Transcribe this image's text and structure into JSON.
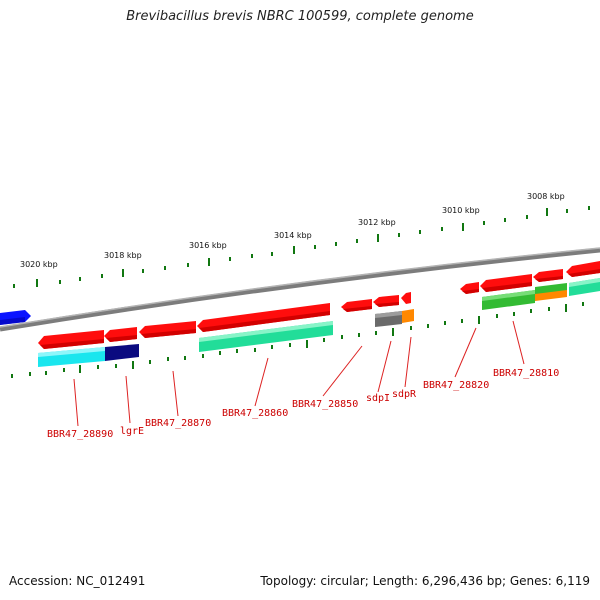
{
  "title": "Brevibacillus brevis NBRC 100599, complete genome",
  "footer": {
    "accession": "Accession: NC_012491",
    "topology": "Topology: circular; Length: 6,296,436 bp; Genes: 6,119"
  },
  "scale_labels": [
    "3020 kbp",
    "3018 kbp",
    "3016 kbp",
    "3014 kbp",
    "3012 kbp",
    "3010 kbp",
    "3008 kbp"
  ],
  "gene_labels": [
    "BBR47_28890",
    "lgrE",
    "BBR47_28870",
    "BBR47_28860",
    "BBR47_28850",
    "sdpI",
    "sdpR",
    "BBR47_28820",
    "BBR47_28810"
  ],
  "colors": {
    "cds": "#ff0000",
    "backbone": "#808080",
    "scale_ticks": "#117711",
    "label_text": "#cc0000",
    "label_line": "#dd2222"
  }
}
